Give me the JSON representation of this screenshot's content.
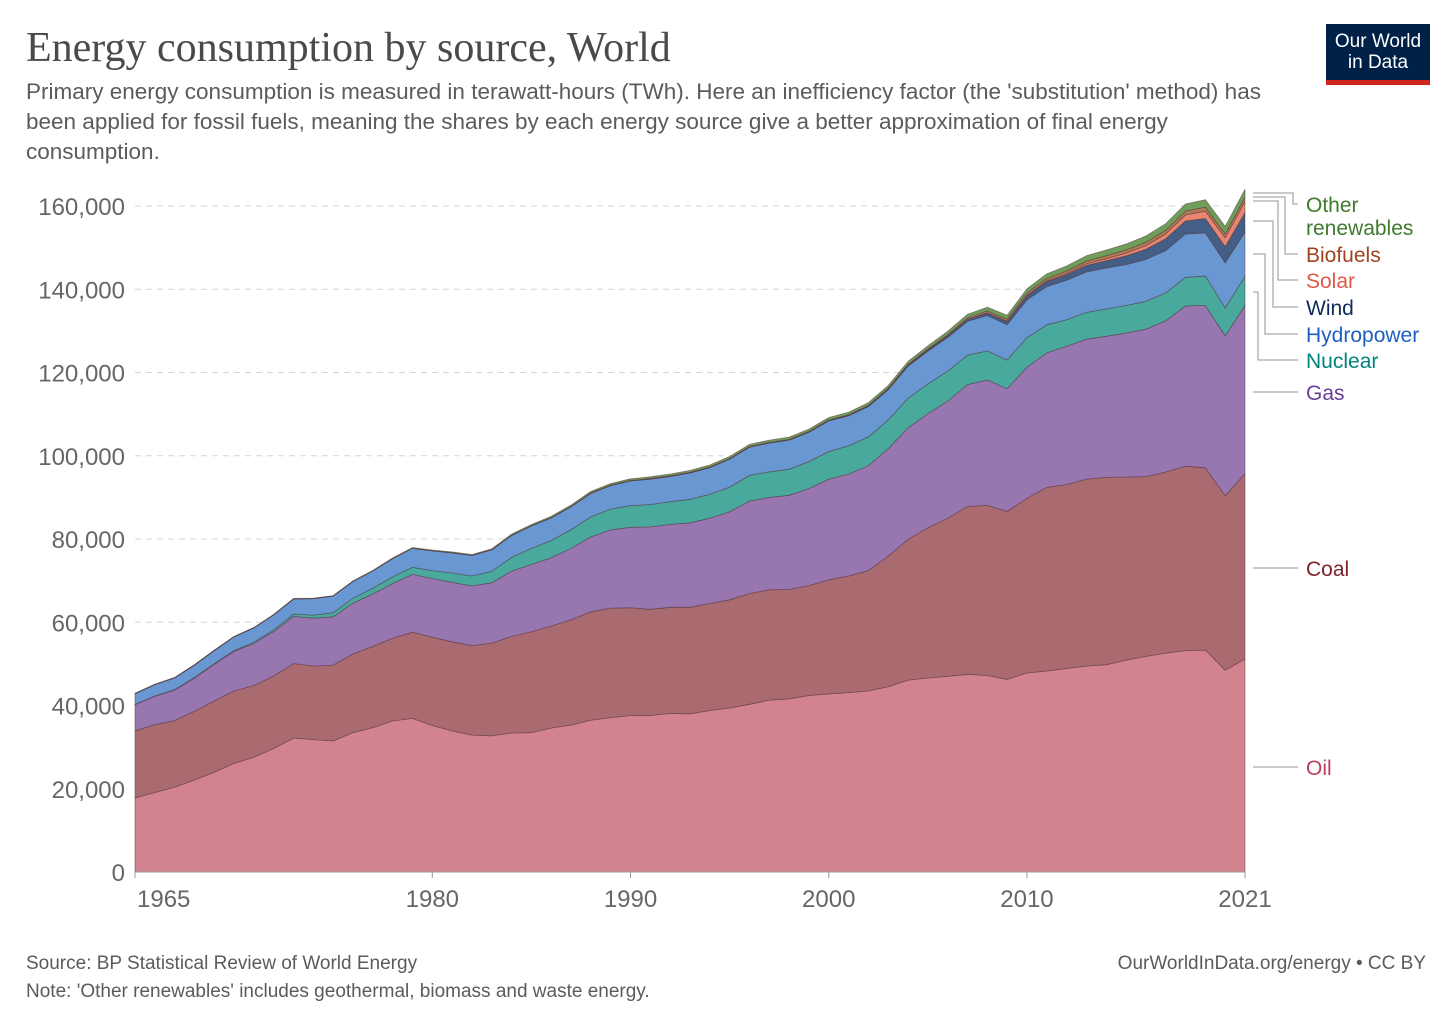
{
  "header": {
    "title": "Energy consumption by source, World",
    "subtitle": "Primary energy consumption is measured in terawatt-hours (TWh). Here an inefficiency factor (the 'substitution' method) has been applied for fossil fuels, meaning the shares by each energy source give a better approximation of final energy consumption.",
    "logo_line1": "Our World",
    "logo_line2": "in Data"
  },
  "footer": {
    "source": "Source: BP Statistical Review of World Energy",
    "note": "Note: 'Other renewables' includes geothermal, biomass and waste energy.",
    "credit": "OurWorldInData.org/energy • CC BY"
  },
  "chart_data": {
    "type": "area",
    "stacked": true,
    "title": "Energy consumption by source, World",
    "xlabel": "",
    "ylabel": "",
    "unit": "TWh",
    "xlim": [
      1965,
      2021
    ],
    "ylim": [
      0,
      160000
    ],
    "grid": "horizontal dashed",
    "legend": "right (inline labels)",
    "y_ticks": [
      0,
      20000,
      40000,
      60000,
      80000,
      100000,
      120000,
      140000,
      160000
    ],
    "y_tick_labels": [
      "0",
      "20,000",
      "40,000",
      "60,000",
      "80,000",
      "100,000",
      "120,000",
      "140,000",
      "160,000"
    ],
    "x_ticks": [
      1965,
      1980,
      1990,
      2000,
      2010,
      2021
    ],
    "x_tick_labels": [
      "1965",
      "1980",
      "1990",
      "2000",
      "2010",
      "2021"
    ],
    "start_year": 1965,
    "series": [
      {
        "name": "Oil",
        "color": "#d3828f",
        "label_color": "#be3e5f",
        "values": [
          17800,
          19100,
          20400,
          22100,
          24000,
          26100,
          27600,
          29700,
          32200,
          31800,
          31500,
          33500,
          34700,
          36300,
          36900,
          35200,
          33900,
          32900,
          32700,
          33400,
          33500,
          34600,
          35300,
          36500,
          37100,
          37600,
          37600,
          38100,
          38000,
          38800,
          39400,
          40300,
          41300,
          41600,
          42400,
          42800,
          43100,
          43500,
          44500,
          46100,
          46600,
          47000,
          47500,
          47200,
          46300,
          47800,
          48300,
          48900,
          49500,
          49800,
          50900,
          51800,
          52600,
          53200,
          53300,
          48500,
          51200
        ]
      },
      {
        "name": "Coal",
        "color": "#a96b70",
        "label_color": "#7e1f29",
        "values": [
          16100,
          16300,
          16000,
          16500,
          17100,
          17400,
          17200,
          17400,
          17900,
          17700,
          18200,
          18900,
          19500,
          19900,
          20700,
          21200,
          21400,
          21500,
          22300,
          23200,
          24200,
          24500,
          25300,
          26000,
          26300,
          25900,
          25500,
          25500,
          25600,
          25700,
          26000,
          26600,
          26500,
          26300,
          26400,
          27400,
          28000,
          28900,
          31400,
          33800,
          36100,
          38000,
          40300,
          40900,
          40300,
          42000,
          44100,
          44200,
          44900,
          45000,
          44000,
          43200,
          43500,
          44300,
          43800,
          41900,
          44500
        ]
      },
      {
        "name": "Gas",
        "color": "#9876b0",
        "label_color": "#6a3d9a",
        "values": [
          6300,
          6800,
          7300,
          8000,
          8800,
          9500,
          10100,
          10700,
          11300,
          11500,
          11600,
          12200,
          12600,
          13100,
          13900,
          14100,
          14300,
          14300,
          14500,
          15700,
          16200,
          16400,
          17200,
          18000,
          18800,
          19300,
          19800,
          19900,
          20300,
          20500,
          21100,
          22200,
          22200,
          22600,
          23300,
          24200,
          24500,
          25200,
          25800,
          26800,
          27400,
          28100,
          29300,
          30100,
          29500,
          31500,
          32300,
          33200,
          33600,
          33900,
          34600,
          35400,
          36300,
          38500,
          39000,
          38400,
          40400
        ]
      },
      {
        "name": "Nuclear",
        "color": "#4aa99d",
        "label_color": "#00847e",
        "values": [
          70,
          90,
          110,
          140,
          170,
          220,
          310,
          420,
          570,
          720,
          1000,
          1180,
          1400,
          1610,
          1700,
          1900,
          2240,
          2400,
          2750,
          3270,
          3840,
          4140,
          4450,
          4840,
          5000,
          5200,
          5400,
          5450,
          5640,
          5760,
          5980,
          6170,
          6110,
          6250,
          6490,
          6630,
          6810,
          6930,
          6870,
          7120,
          7150,
          7240,
          7050,
          7000,
          6900,
          7100,
          6760,
          6350,
          6430,
          6560,
          6610,
          6680,
          6720,
          6880,
          7050,
          6750,
          6960
        ]
      },
      {
        "name": "Hydropower",
        "color": "#6897d1",
        "label_color": "#1f5fc1",
        "values": [
          2600,
          2750,
          2850,
          3000,
          3150,
          3300,
          3450,
          3600,
          3650,
          3950,
          4000,
          4050,
          4150,
          4400,
          4600,
          4800,
          4850,
          4950,
          5150,
          5300,
          5400,
          5450,
          5500,
          5650,
          5650,
          5950,
          6100,
          6100,
          6350,
          6400,
          6700,
          6800,
          6950,
          7000,
          7050,
          7350,
          7200,
          7300,
          7300,
          7700,
          7900,
          8100,
          8150,
          8500,
          8500,
          9100,
          9200,
          9500,
          9750,
          9850,
          9800,
          10100,
          10200,
          10400,
          10400,
          10800,
          10700
        ]
      },
      {
        "name": "Wind",
        "color": "#445e86",
        "label_color": "#0f2a5c",
        "values": [
          0,
          0,
          0,
          0,
          0,
          0,
          0,
          0,
          0,
          0,
          0,
          0,
          0,
          0,
          0,
          0,
          0,
          0,
          0,
          0,
          1,
          2,
          3,
          6,
          8,
          10,
          12,
          15,
          18,
          22,
          28,
          33,
          40,
          55,
          65,
          85,
          105,
          140,
          170,
          230,
          280,
          360,
          460,
          600,
          740,
          920,
          1160,
          1340,
          1560,
          1750,
          2100,
          2450,
          2830,
          3130,
          3450,
          3900,
          4650
        ]
      },
      {
        "name": "Solar",
        "color": "#e8866f",
        "label_color": "#e0584a",
        "values": [
          0,
          0,
          0,
          0,
          0,
          0,
          0,
          0,
          0,
          0,
          0,
          0,
          0,
          0,
          0,
          0,
          0,
          0,
          0,
          0,
          0,
          0,
          0,
          0,
          0,
          1,
          1,
          1,
          1,
          1,
          2,
          2,
          2,
          2,
          3,
          3,
          4,
          5,
          6,
          8,
          12,
          16,
          22,
          35,
          55,
          90,
          180,
          270,
          370,
          500,
          650,
          850,
          1150,
          1450,
          1750,
          2100,
          2700
        ]
      },
      {
        "name": "Biofuels",
        "color": "#b07a55",
        "label_color": "#a0431e",
        "values": [
          0,
          0,
          0,
          0,
          0,
          0,
          0,
          0,
          0,
          0,
          0,
          0,
          0,
          0,
          0,
          0,
          20,
          30,
          40,
          50,
          60,
          70,
          80,
          90,
          100,
          110,
          110,
          110,
          110,
          110,
          110,
          110,
          110,
          120,
          120,
          110,
          130,
          150,
          170,
          190,
          220,
          280,
          360,
          460,
          500,
          560,
          590,
          620,
          680,
          720,
          770,
          800,
          840,
          930,
          980,
          920,
          1000
        ]
      },
      {
        "name": "Other renewables",
        "color": "#6f9d5a",
        "label_color": "#3f7a2e",
        "label_lines": [
          "Other",
          "renewables"
        ],
        "values": [
          60,
          65,
          70,
          75,
          80,
          85,
          90,
          95,
          100,
          105,
          110,
          120,
          130,
          140,
          150,
          160,
          180,
          200,
          220,
          250,
          280,
          310,
          340,
          360,
          380,
          400,
          420,
          440,
          460,
          480,
          500,
          520,
          540,
          560,
          580,
          600,
          610,
          640,
          670,
          710,
          760,
          800,
          850,
          900,
          950,
          1050,
          1120,
          1200,
          1280,
          1360,
          1440,
          1520,
          1600,
          1700,
          1780,
          1830,
          1900
        ]
      }
    ]
  }
}
